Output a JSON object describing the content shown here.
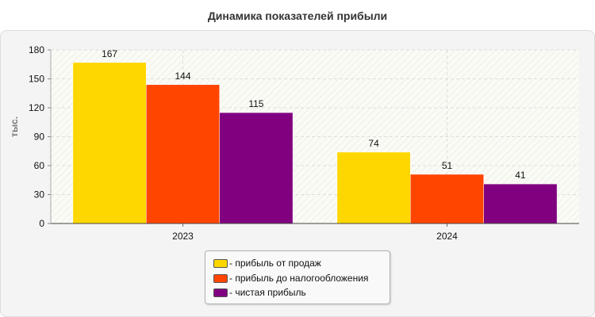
{
  "chart_data": {
    "type": "bar",
    "title": "Динамика показателей прибыли",
    "ylabel": "тыс.",
    "xlabel": "",
    "categories": [
      "2023",
      "2024"
    ],
    "ylim": [
      0,
      180
    ],
    "yticks": [
      0,
      30,
      60,
      90,
      120,
      150,
      180
    ],
    "grid": true,
    "legend_position": "bottom",
    "series": [
      {
        "name": "- прибыль от продаж",
        "values": [
          167,
          74
        ],
        "color": "#FFD700"
      },
      {
        "name": "- прибыль до налогообложения",
        "values": [
          144,
          51
        ],
        "color": "#FF4500"
      },
      {
        "name": "- чистая прибыль",
        "values": [
          115,
          41
        ],
        "color": "#800080"
      }
    ]
  }
}
